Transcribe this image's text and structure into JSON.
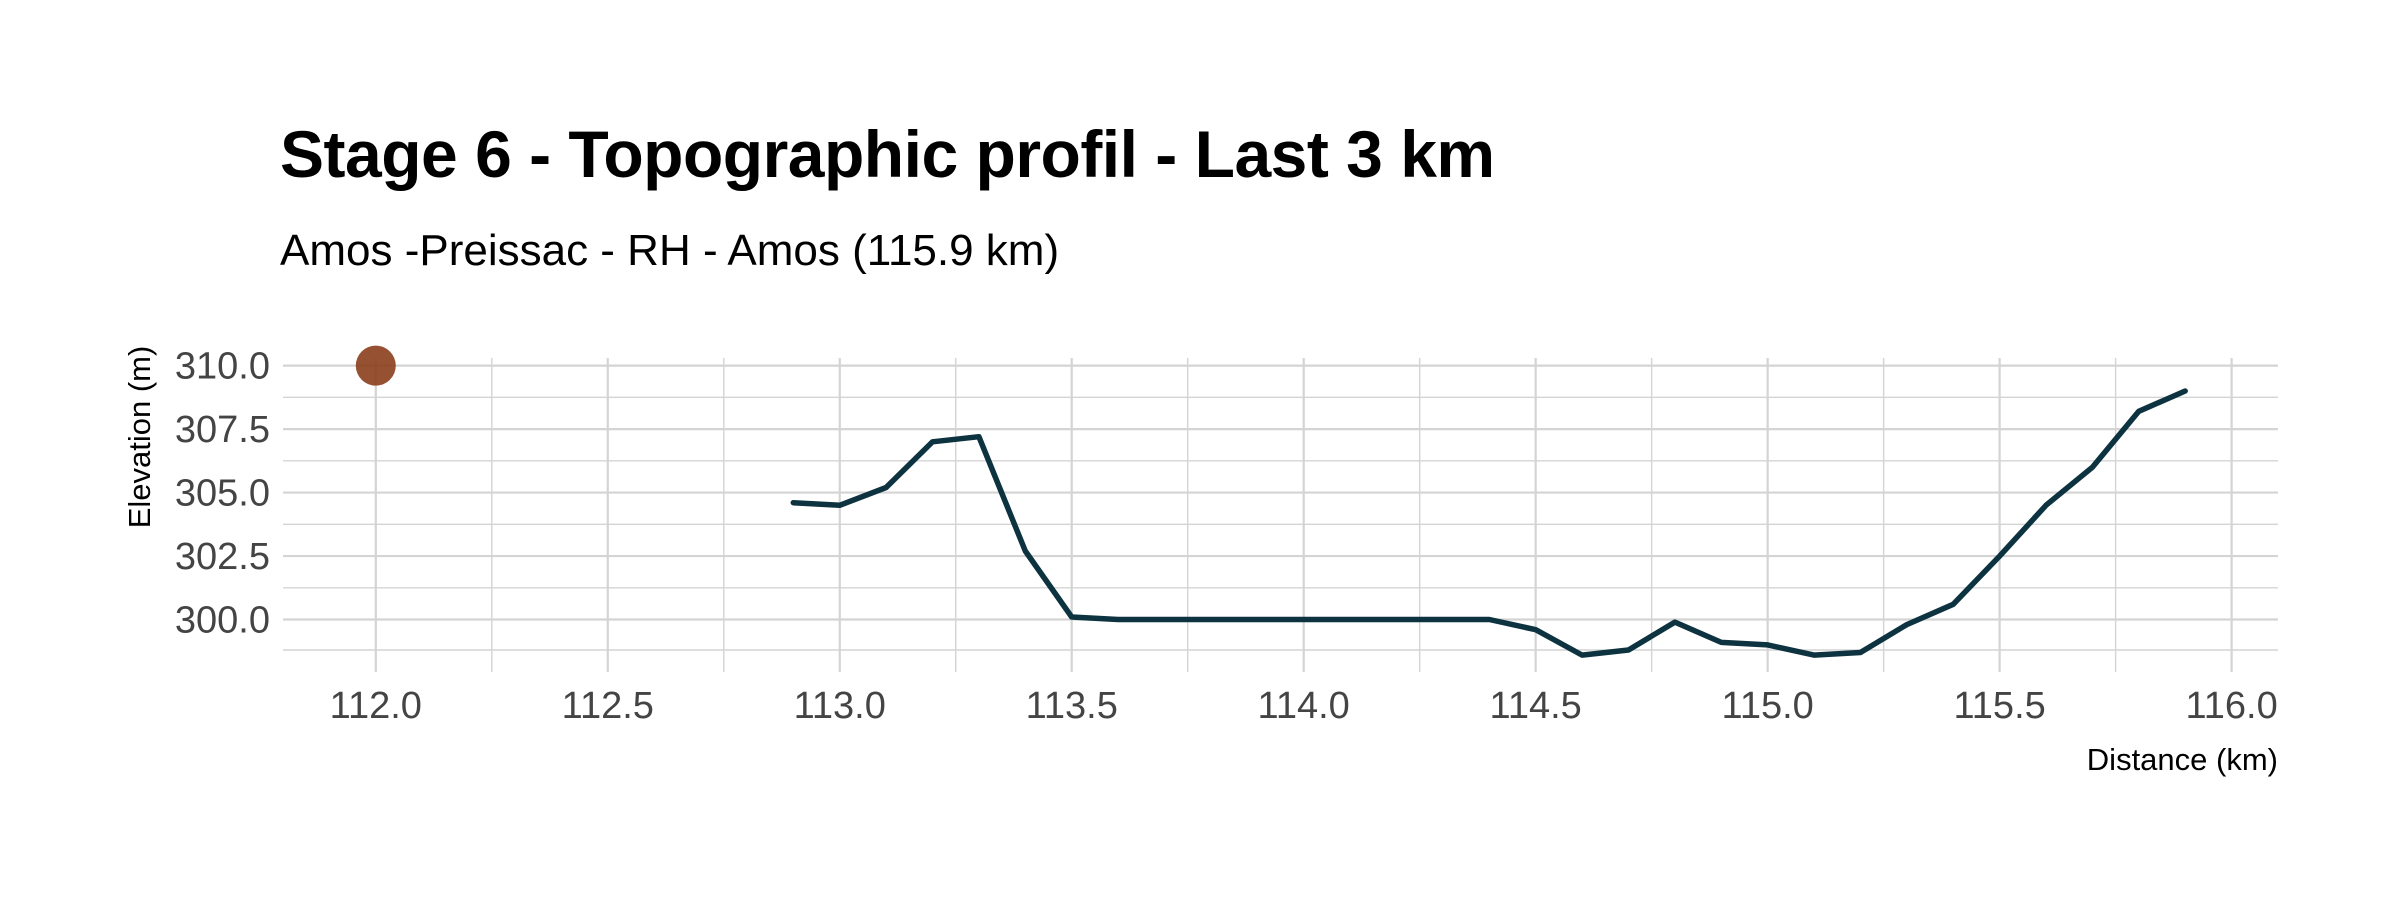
{
  "chart_data": {
    "type": "line",
    "title": "Stage 6 - Topographic profil - Last 3 km",
    "subtitle": "Amos -Preissac - RH - Amos (115.9 km)",
    "xlabel": "Distance (km)",
    "ylabel": "Elevation (m)",
    "xlim": [
      111.8,
      116.1
    ],
    "ylim": [
      298.8,
      310.3
    ],
    "x_ticks": [
      112.0,
      112.5,
      113.0,
      113.5,
      114.0,
      114.5,
      115.0,
      115.5,
      116.0
    ],
    "x_tick_labels": [
      "112.0",
      "112.5",
      "113.0",
      "113.5",
      "114.0",
      "114.5",
      "115.0",
      "115.5",
      "116.0"
    ],
    "y_ticks": [
      300.0,
      302.5,
      305.0,
      307.5,
      310.0
    ],
    "y_tick_labels": [
      "300.0",
      "302.5",
      "305.0",
      "307.5",
      "310.0"
    ],
    "grid": true,
    "colors": {
      "line": "#0d3340",
      "marker": "#8b3e1c",
      "grid": "#d4d4d4"
    },
    "series": [
      {
        "x": [
          112.9,
          113.0,
          113.1,
          113.2,
          113.3,
          113.4,
          113.5,
          113.6,
          113.7,
          113.8,
          113.9,
          114.0,
          114.1,
          114.2,
          114.3,
          114.4,
          114.5,
          114.6,
          114.7,
          114.8,
          114.9,
          115.0,
          115.1,
          115.2,
          115.3,
          115.4,
          115.5,
          115.6,
          115.7,
          115.8,
          115.9
        ],
        "values": [
          304.6,
          304.5,
          305.2,
          307.0,
          307.2,
          302.7,
          300.1,
          300.0,
          300.0,
          300.0,
          300.0,
          300.0,
          300.0,
          300.0,
          300.0,
          300.0,
          299.6,
          298.6,
          298.8,
          299.9,
          299.1,
          299.0,
          298.6,
          298.7,
          299.8,
          300.6,
          302.5,
          304.5,
          306.0,
          308.2,
          309.0
        ]
      }
    ],
    "marker_points": [
      {
        "x": 112.0,
        "y": 310.0
      }
    ]
  }
}
